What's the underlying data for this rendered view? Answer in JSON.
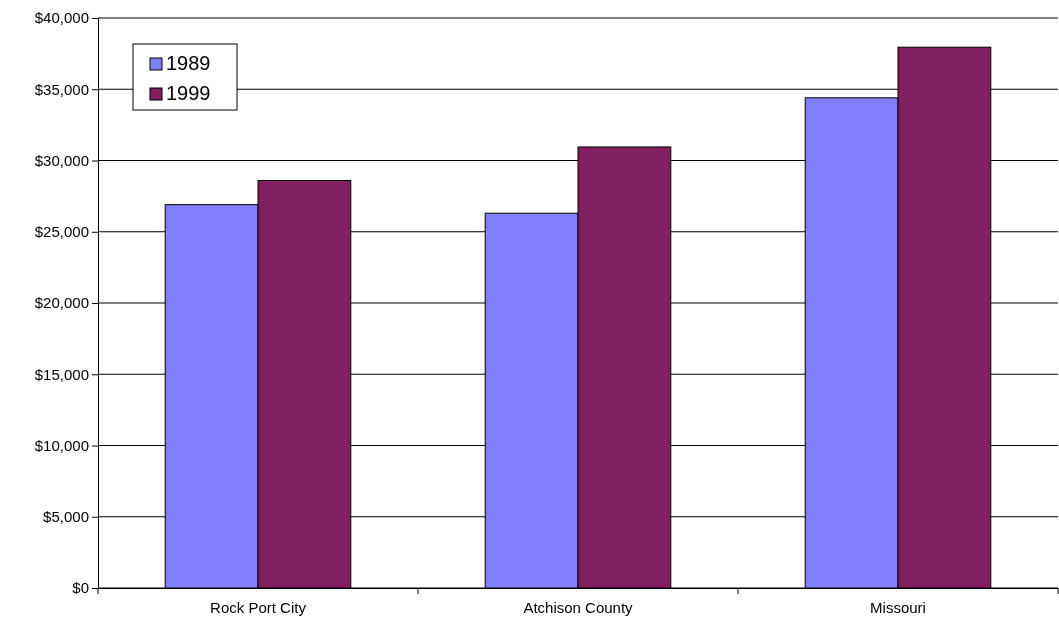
{
  "chart_data": {
    "type": "bar",
    "categories": [
      "Rock Port City",
      "Atchison County",
      "Missouri"
    ],
    "series": [
      {
        "name": "1989",
        "color": "#8080ff",
        "values": [
          26900,
          26300,
          34400
        ]
      },
      {
        "name": "1999",
        "color": "#802060",
        "values": [
          28600,
          30950,
          37950
        ]
      }
    ],
    "ylim": [
      0,
      40000
    ],
    "yticks": [
      {
        "value": 0,
        "label": "$0"
      },
      {
        "value": 5000,
        "label": "$5,000"
      },
      {
        "value": 10000,
        "label": "$10,000"
      },
      {
        "value": 15000,
        "label": "$15,000"
      },
      {
        "value": 20000,
        "label": "$20,000"
      },
      {
        "value": 25000,
        "label": "$25,000"
      },
      {
        "value": 30000,
        "label": "$30,000"
      },
      {
        "value": 35000,
        "label": "$35,000"
      },
      {
        "value": 40000,
        "label": "$40,000"
      }
    ],
    "grid": "y",
    "legend": "top left"
  }
}
